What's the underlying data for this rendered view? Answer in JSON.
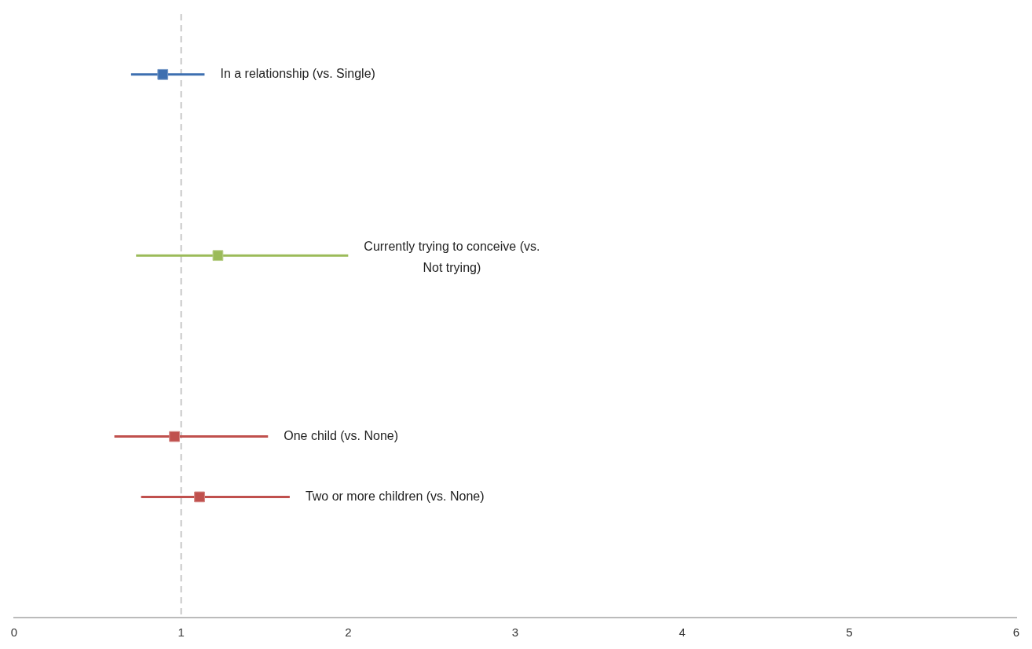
{
  "chart_data": {
    "type": "scatter",
    "orientation": "horizontal",
    "categories": [
      null,
      null,
      null,
      null,
      null,
      null,
      null,
      null,
      null
    ],
    "xlim": [
      0,
      6
    ],
    "xticks": [
      0,
      1,
      2,
      3,
      4,
      5,
      6
    ],
    "grid": false,
    "legend": false,
    "marker": "square",
    "ref_lines": [
      {
        "axis": "x",
        "value": 1,
        "color": "#c8c8c8",
        "line_style": "dashed"
      }
    ],
    "series": [
      {
        "name": "In a relationship (vs. Single)",
        "color": "#3d6fb0",
        "values": [
          0.89,
          null,
          null,
          null,
          null,
          null,
          null,
          null,
          null
        ],
        "errors": [
          [
            0.7,
            1.14
          ],
          null,
          null,
          null,
          null,
          null,
          null,
          null,
          null
        ]
      },
      {
        "name": "Currently trying to conceive (vs. Not trying)",
        "color": "#9bbb59",
        "values": [
          null,
          null,
          null,
          1.22,
          null,
          null,
          null,
          null,
          null
        ],
        "errors": [
          null,
          null,
          null,
          [
            0.73,
            2.0
          ],
          null,
          null,
          null,
          null,
          null
        ]
      },
      {
        "name": "One child (vs. None)",
        "color": "#c0504d",
        "values": [
          null,
          null,
          null,
          null,
          null,
          null,
          0.96,
          null,
          null
        ],
        "errors": [
          null,
          null,
          null,
          null,
          null,
          null,
          [
            0.6,
            1.52
          ],
          null,
          null
        ]
      },
      {
        "name": "Two or more children (vs. None)",
        "color": "#c0504d",
        "values": [
          null,
          null,
          null,
          null,
          null,
          null,
          null,
          1.11,
          null
        ],
        "errors": [
          null,
          null,
          null,
          null,
          null,
          null,
          null,
          [
            0.76,
            1.65
          ],
          null
        ]
      }
    ]
  }
}
